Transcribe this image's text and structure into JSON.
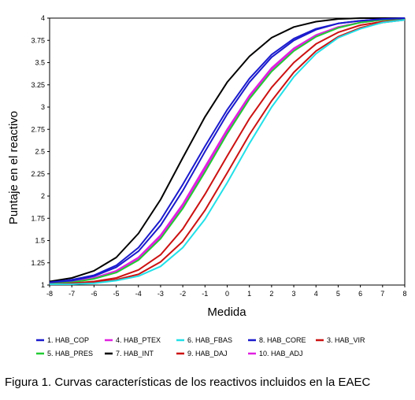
{
  "caption": "Figura 1. Curvas características de los reactivos incluidos en la EAEC",
  "chart_data": {
    "type": "line",
    "xlabel": "Medida",
    "ylabel": "Puntaje en el reactivo",
    "xlim": [
      -8,
      8
    ],
    "ylim": [
      1,
      4
    ],
    "xticks": [
      "-8",
      "-7",
      "-6",
      "-5",
      "-4",
      "-3",
      "-2",
      "-1",
      "0",
      "1",
      "2",
      "3",
      "4",
      "5",
      "6",
      "7",
      "8"
    ],
    "yticks": [
      "1",
      "1.25",
      "1.5",
      "1.75",
      "2",
      "2.25",
      "2.5",
      "2.75",
      "3",
      "3.25",
      "3.5",
      "3.75",
      "4"
    ],
    "grid": false,
    "legend_position": "bottom",
    "x": [
      -8,
      -7,
      -6,
      -5,
      -4,
      -3,
      -2,
      -1,
      0,
      1,
      2,
      3,
      4,
      5,
      6,
      7,
      8
    ],
    "series": [
      {
        "name": "1. HAB_COP",
        "color": "#1a1acd",
        "values": [
          1.03,
          1.06,
          1.11,
          1.22,
          1.42,
          1.73,
          2.13,
          2.56,
          2.97,
          3.32,
          3.59,
          3.77,
          3.88,
          3.94,
          3.97,
          3.99,
          4.0
        ]
      },
      {
        "name": "3. HAB_VIR",
        "color": "#cc1111",
        "values": [
          1.01,
          1.02,
          1.04,
          1.08,
          1.17,
          1.34,
          1.63,
          2.02,
          2.45,
          2.87,
          3.22,
          3.5,
          3.71,
          3.84,
          3.92,
          3.96,
          3.98
        ]
      },
      {
        "name": "4. HAB_PTEX",
        "color": "#e020e0",
        "values": [
          1.02,
          1.04,
          1.08,
          1.15,
          1.29,
          1.54,
          1.89,
          2.3,
          2.72,
          3.11,
          3.42,
          3.65,
          3.8,
          3.9,
          3.95,
          3.98,
          3.99
        ]
      },
      {
        "name": "5. HAB_PRES",
        "color": "#22cc33",
        "values": [
          1.02,
          1.03,
          1.07,
          1.14,
          1.28,
          1.52,
          1.86,
          2.27,
          2.7,
          3.09,
          3.4,
          3.63,
          3.79,
          3.89,
          3.95,
          3.98,
          3.99
        ]
      },
      {
        "name": "6. HAB_FBAS",
        "color": "#22e0e8",
        "values": [
          1.01,
          1.01,
          1.02,
          1.05,
          1.1,
          1.21,
          1.42,
          1.74,
          2.15,
          2.59,
          3.0,
          3.34,
          3.6,
          3.78,
          3.88,
          3.95,
          3.98
        ]
      },
      {
        "name": "7. HAB_INT",
        "color": "#000000",
        "values": [
          1.04,
          1.08,
          1.16,
          1.31,
          1.58,
          1.96,
          2.43,
          2.89,
          3.28,
          3.57,
          3.78,
          3.9,
          3.96,
          3.99,
          4.0,
          4.0,
          4.0
        ]
      },
      {
        "name": "8. HAB_CORE",
        "color": "#1a1acd",
        "values": [
          1.03,
          1.05,
          1.1,
          1.2,
          1.38,
          1.67,
          2.06,
          2.5,
          2.92,
          3.28,
          3.56,
          3.75,
          3.87,
          3.94,
          3.97,
          3.99,
          4.0
        ]
      },
      {
        "name": "9. HAB_DAJ",
        "color": "#cc1111",
        "values": [
          1.01,
          1.01,
          1.03,
          1.06,
          1.12,
          1.26,
          1.49,
          1.84,
          2.26,
          2.69,
          3.07,
          3.39,
          3.63,
          3.79,
          3.89,
          3.95,
          3.98
        ]
      },
      {
        "name": "10. HAB_ADJ",
        "color": "#e020e0",
        "values": [
          1.02,
          1.04,
          1.08,
          1.16,
          1.31,
          1.56,
          1.91,
          2.33,
          2.75,
          3.13,
          3.44,
          3.66,
          3.81,
          3.9,
          3.95,
          3.98,
          3.99
        ]
      }
    ],
    "legend_order": [
      0,
      2,
      4,
      6,
      1,
      3,
      5,
      7,
      8
    ]
  }
}
